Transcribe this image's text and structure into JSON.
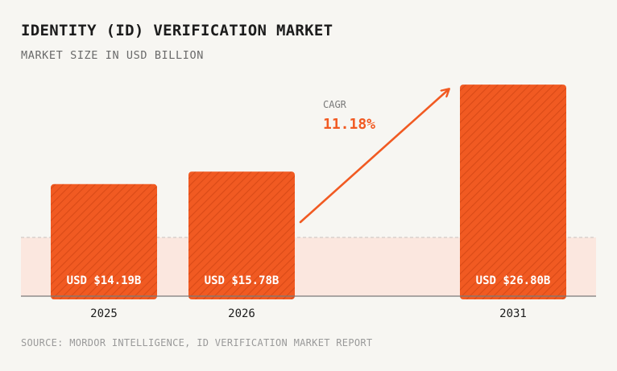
{
  "header": {
    "title": "IDENTITY (ID) VERIFICATION MARKET",
    "subtitle": "MARKET SIZE IN USD BILLION"
  },
  "footer": {
    "source": "SOURCE: MORDOR INTELLIGENCE, ID VERIFICATION MARKET REPORT"
  },
  "annotation": {
    "label": "CAGR",
    "value": "11.18%"
  },
  "colors": {
    "bar": "#f15a22",
    "bar_hatch": "#d94a17",
    "band": "#fbe7df",
    "accent_text": "#f15a22",
    "axis": "#7a7a7a"
  },
  "chart_data": {
    "type": "bar",
    "title": "IDENTITY (ID) VERIFICATION MARKET",
    "subtitle": "MARKET SIZE IN USD BILLION",
    "categories": [
      "2025",
      "2026",
      "2031"
    ],
    "values": [
      14.19,
      15.78,
      26.8
    ],
    "value_labels": [
      "USD $14.19B",
      "USD $15.78B",
      "USD $26.80B"
    ],
    "unit": "USD billion",
    "xlabel": "",
    "ylabel": "",
    "grid": false,
    "legend": "none",
    "cagr": "11.18%"
  }
}
